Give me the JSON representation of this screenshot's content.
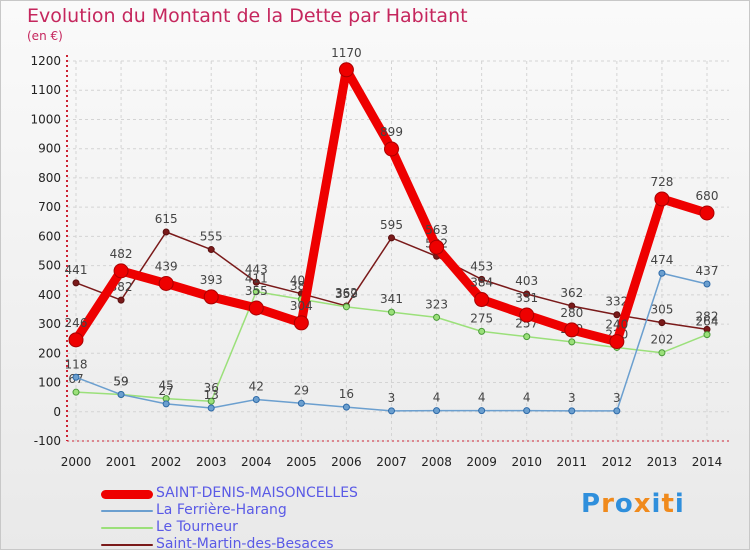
{
  "chart_data": {
    "type": "line",
    "title": "Evolution du Montant de la Dette par Habitant",
    "ylabel": "(en €)",
    "ylim": [
      -100,
      1200
    ],
    "yticks": [
      -100,
      0,
      100,
      200,
      300,
      400,
      500,
      600,
      700,
      800,
      900,
      1000,
      1100,
      1200
    ],
    "x": [
      "2000",
      "2001",
      "2002",
      "2003",
      "2004",
      "2005",
      "2006",
      "2007",
      "2008",
      "2009",
      "2010",
      "2011",
      "2012",
      "2013",
      "2014"
    ],
    "grid": true,
    "legend_position": "bottom-left",
    "series": [
      {
        "name": "Saint-Martin-des-Besaces",
        "color": "#7a1a1a",
        "values": [
          441,
          382,
          615,
          555,
          443,
          404,
          362,
          595,
          532,
          453,
          403,
          362,
          332,
          305,
          282
        ]
      },
      {
        "name": "Le Tourneur",
        "color": "#9be07a",
        "values": [
          67,
          59,
          45,
          36,
          411,
          385,
          359,
          341,
          323,
          275,
          257,
          239,
          220,
          202,
          264
        ]
      },
      {
        "name": "La Ferrière-Harang",
        "color": "#6b9fcf",
        "values": [
          118,
          59,
          27,
          13,
          42,
          29,
          16,
          3,
          4,
          4,
          4,
          3,
          3,
          474,
          437
        ]
      },
      {
        "name": "SAINT-DENIS-MAISONCELLES",
        "color": "#ee0000",
        "values": [
          246,
          482,
          439,
          393,
          355,
          304,
          1170,
          899,
          563,
          384,
          331,
          280,
          240,
          728,
          680
        ]
      }
    ]
  },
  "legend": [
    {
      "label": "SAINT-DENIS-MAISONCELLES",
      "color": "#ee0000"
    },
    {
      "label": "La Ferrière-Harang",
      "color": "#6b9fcf"
    },
    {
      "label": "Le Tourneur",
      "color": "#9be07a"
    },
    {
      "label": "Saint-Martin-des-Besaces",
      "color": "#7a1a1a"
    }
  ],
  "brand": {
    "letters": [
      "P",
      "r",
      "o",
      "x",
      "i",
      "t",
      "i"
    ],
    "colors": [
      "#2f8fdc",
      "#f08a1c",
      "#2f8fdc",
      "#f08a1c",
      "#2f8fdc",
      "#f08a1c",
      "#2f8fdc"
    ]
  }
}
